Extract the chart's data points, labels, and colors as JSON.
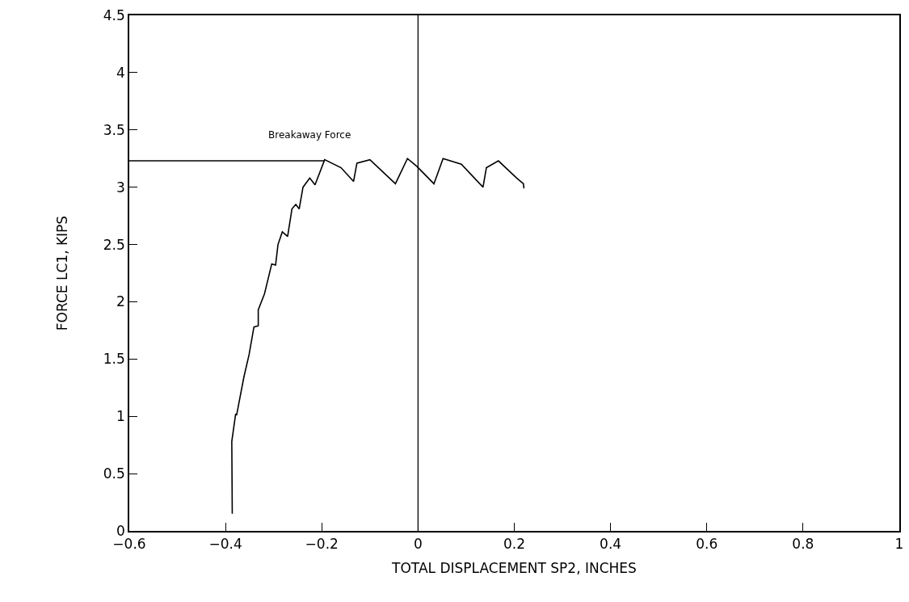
{
  "chart_data": {
    "type": "line",
    "xlabel": "TOTAL DISPLACEMENT SP2, INCHES",
    "ylabel": "FORCE LC1, KIPS",
    "xlim": [
      -0.6,
      1
    ],
    "ylim": [
      0,
      4.5
    ],
    "xticks": [
      {
        "value": -0.6,
        "label": "−0.6"
      },
      {
        "value": -0.4,
        "label": "−0.4"
      },
      {
        "value": -0.2,
        "label": "−0.2"
      },
      0,
      0.2,
      0.4,
      0.6,
      0.8,
      1
    ],
    "yticks": [
      0,
      0.5,
      1,
      1.5,
      2,
      2.5,
      3,
      3.5,
      4,
      4.5
    ],
    "marker": "none",
    "line_style": "solid",
    "series": [
      {
        "color": "#000000",
        "x": [
          -0.386,
          -0.387,
          -0.379,
          -0.377,
          -0.362,
          -0.351,
          -0.341,
          -0.332,
          -0.332,
          -0.319,
          -0.304,
          -0.296,
          -0.291,
          -0.282,
          -0.271,
          -0.262,
          -0.254,
          -0.247,
          -0.239,
          -0.225,
          -0.214,
          -0.194,
          -0.16,
          -0.134,
          -0.127,
          -0.1,
          -0.047,
          -0.022,
          -0.002,
          0.033,
          0.052,
          0.09,
          0.135,
          0.142,
          0.167,
          0.205,
          0.219,
          0.22
        ],
        "values": [
          0.15,
          0.78,
          1.02,
          1.01,
          1.34,
          1.54,
          1.78,
          1.79,
          1.93,
          2.07,
          2.33,
          2.32,
          2.5,
          2.61,
          2.57,
          2.81,
          2.85,
          2.81,
          3.0,
          3.08,
          3.02,
          3.24,
          3.17,
          3.05,
          3.21,
          3.24,
          3.03,
          3.25,
          3.18,
          3.03,
          3.25,
          3.2,
          3.0,
          3.17,
          3.23,
          3.08,
          3.03,
          2.99
        ]
      },
      {
        "color": "#000000",
        "x": [
          -0.6,
          -0.194
        ],
        "values": [
          3.23,
          3.23
        ]
      }
    ],
    "ref_lines": [
      {
        "axis": "x",
        "value": 0,
        "color": "#000000"
      }
    ],
    "annotations": [
      "Breakaway Force"
    ]
  }
}
